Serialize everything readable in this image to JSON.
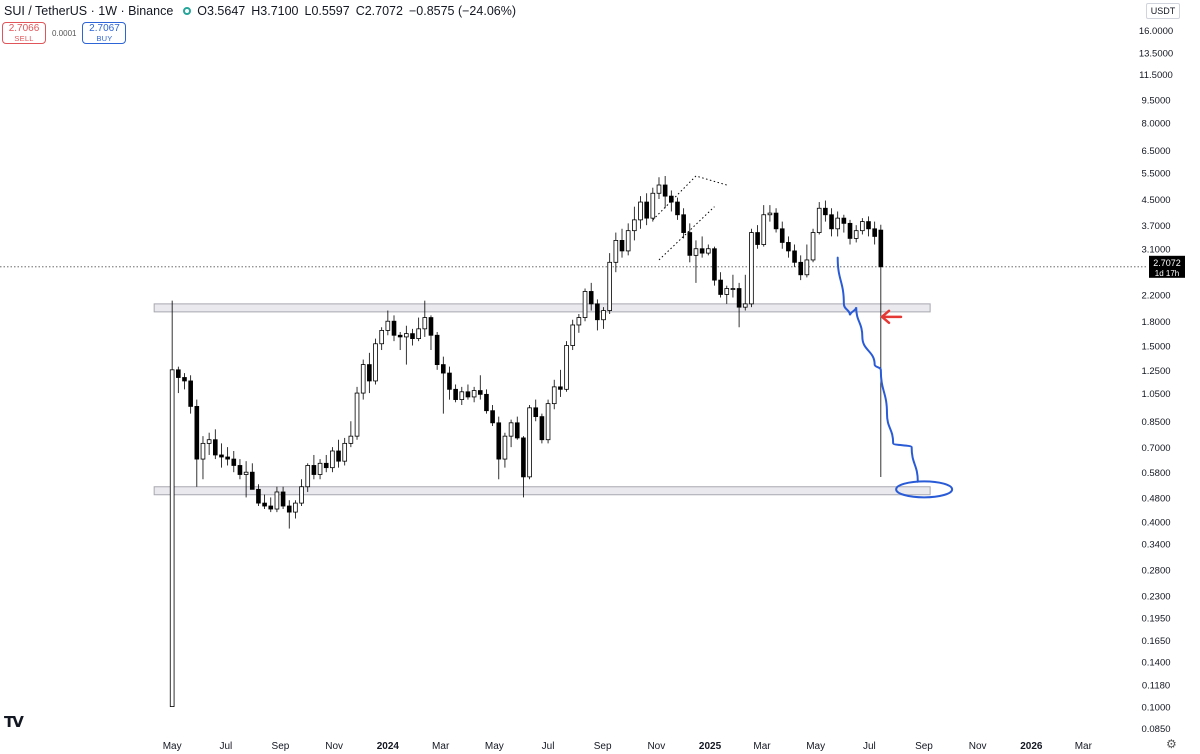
{
  "header": {
    "symbol": "SUI / TetherUS · 1W · Binance",
    "open": "O3.5647",
    "high": "H3.7100",
    "low": "L0.5597",
    "close": "C2.7072",
    "change": "−0.8575 (−24.06%)",
    "sell_price": "2.7066",
    "sell_label": "SELL",
    "spread": "0.0001",
    "buy_price": "2.7067",
    "buy_label": "BUY",
    "currency": "USDT"
  },
  "last_price": {
    "value": "2.7072",
    "countdown": "1d 17h"
  },
  "colors": {
    "up_body": "#ffffff",
    "down_body": "#000000",
    "annotation_blue": "#2a5bd7",
    "annotation_red": "#e53935",
    "zone_fill": "#e9e9ee",
    "zone_stroke": "#a8a8b0"
  },
  "icons": {
    "logo": "tradingview-logo-icon",
    "settings": "gear-icon"
  },
  "logo_text": "TV",
  "chart_data": {
    "type": "candlestick",
    "title": "SUI / TetherUS · 1W · Binance",
    "y_scale": "log",
    "ylim": [
      0.082,
      17.5
    ],
    "xlim": [
      "2023-04-24",
      "2026-04-06"
    ],
    "y_ticks": [
      16.0,
      13.5,
      11.5,
      9.5,
      8.0,
      6.5,
      5.5,
      4.5,
      3.7,
      3.1,
      2.2,
      1.8,
      1.5,
      1.25,
      1.05,
      0.85,
      0.7,
      0.58,
      0.48,
      0.4,
      0.34,
      0.28,
      0.23,
      0.195,
      0.165,
      0.14,
      0.118,
      0.1,
      0.085
    ],
    "y_tick_labels": [
      "16.0000",
      "13.5000",
      "11.5000",
      "9.5000",
      "8.0000",
      "6.5000",
      "5.5000",
      "4.5000",
      "3.7000",
      "3.1000",
      "2.2000",
      "1.8000",
      "1.5000",
      "1.2500",
      "1.0500",
      "0.8500",
      "0.7000",
      "0.5800",
      "0.4800",
      "0.4000",
      "0.3400",
      "0.2800",
      "0.2300",
      "0.1950",
      "0.1650",
      "0.1400",
      "0.1180",
      "0.1000",
      "0.0850"
    ],
    "x_ticks": [
      {
        "date": "2023-05-01",
        "label": "May",
        "bold": false
      },
      {
        "date": "2023-07-01",
        "label": "Jul",
        "bold": false
      },
      {
        "date": "2023-09-01",
        "label": "Sep",
        "bold": false
      },
      {
        "date": "2023-11-01",
        "label": "Nov",
        "bold": false
      },
      {
        "date": "2024-01-01",
        "label": "2024",
        "bold": true
      },
      {
        "date": "2024-03-01",
        "label": "Mar",
        "bold": false
      },
      {
        "date": "2024-05-01",
        "label": "May",
        "bold": false
      },
      {
        "date": "2024-07-01",
        "label": "Jul",
        "bold": false
      },
      {
        "date": "2024-09-01",
        "label": "Sep",
        "bold": false
      },
      {
        "date": "2024-11-01",
        "label": "Nov",
        "bold": false
      },
      {
        "date": "2025-01-01",
        "label": "2025",
        "bold": true
      },
      {
        "date": "2025-03-01",
        "label": "Mar",
        "bold": false
      },
      {
        "date": "2025-05-01",
        "label": "May",
        "bold": false
      },
      {
        "date": "2025-07-01",
        "label": "Jul",
        "bold": false
      },
      {
        "date": "2025-09-01",
        "label": "Sep",
        "bold": false
      },
      {
        "date": "2025-11-01",
        "label": "Nov",
        "bold": false
      },
      {
        "date": "2026-01-01",
        "label": "2026",
        "bold": true
      },
      {
        "date": "2026-03-01",
        "label": "Mar",
        "bold": false
      }
    ],
    "first_week": "2023-05-01",
    "candles": [
      [
        0.1,
        2.1,
        0.1,
        1.25
      ],
      [
        1.25,
        1.28,
        1.05,
        1.18
      ],
      [
        1.18,
        1.22,
        1.08,
        1.15
      ],
      [
        1.15,
        1.2,
        0.9,
        0.95
      ],
      [
        0.95,
        1.0,
        0.52,
        0.64
      ],
      [
        0.64,
        0.76,
        0.55,
        0.72
      ],
      [
        0.72,
        0.78,
        0.66,
        0.74
      ],
      [
        0.74,
        0.8,
        0.64,
        0.66
      ],
      [
        0.66,
        0.72,
        0.6,
        0.65
      ],
      [
        0.65,
        0.7,
        0.61,
        0.64
      ],
      [
        0.64,
        0.68,
        0.58,
        0.61
      ],
      [
        0.61,
        0.64,
        0.55,
        0.57
      ],
      [
        0.57,
        0.63,
        0.48,
        0.58
      ],
      [
        0.58,
        0.62,
        0.51,
        0.51
      ],
      [
        0.51,
        0.53,
        0.45,
        0.46
      ],
      [
        0.46,
        0.49,
        0.44,
        0.45
      ],
      [
        0.45,
        0.48,
        0.43,
        0.44
      ],
      [
        0.44,
        0.52,
        0.43,
        0.5
      ],
      [
        0.5,
        0.52,
        0.44,
        0.45
      ],
      [
        0.45,
        0.47,
        0.38,
        0.43
      ],
      [
        0.43,
        0.47,
        0.41,
        0.46
      ],
      [
        0.46,
        0.55,
        0.45,
        0.52
      ],
      [
        0.52,
        0.62,
        0.5,
        0.61
      ],
      [
        0.61,
        0.66,
        0.55,
        0.57
      ],
      [
        0.57,
        0.64,
        0.55,
        0.62
      ],
      [
        0.62,
        0.66,
        0.58,
        0.6
      ],
      [
        0.6,
        0.7,
        0.58,
        0.68
      ],
      [
        0.68,
        0.74,
        0.6,
        0.63
      ],
      [
        0.63,
        0.75,
        0.61,
        0.72
      ],
      [
        0.72,
        0.85,
        0.7,
        0.76
      ],
      [
        0.76,
        1.1,
        0.74,
        1.05
      ],
      [
        1.05,
        1.35,
        1.0,
        1.3
      ],
      [
        1.3,
        1.42,
        1.05,
        1.15
      ],
      [
        1.15,
        1.58,
        1.12,
        1.52
      ],
      [
        1.52,
        1.72,
        1.45,
        1.68
      ],
      [
        1.68,
        1.95,
        1.62,
        1.8
      ],
      [
        1.8,
        1.88,
        1.55,
        1.62
      ],
      [
        1.62,
        1.66,
        1.45,
        1.6
      ],
      [
        1.6,
        1.74,
        1.3,
        1.64
      ],
      [
        1.64,
        1.7,
        1.5,
        1.58
      ],
      [
        1.58,
        1.85,
        1.55,
        1.7
      ],
      [
        1.7,
        2.1,
        1.6,
        1.85
      ],
      [
        1.85,
        1.88,
        1.45,
        1.62
      ],
      [
        1.62,
        1.66,
        1.25,
        1.3
      ],
      [
        1.3,
        1.38,
        0.9,
        1.22
      ],
      [
        1.22,
        1.28,
        1.0,
        1.08
      ],
      [
        1.08,
        1.12,
        0.98,
        1.0
      ],
      [
        1.0,
        1.1,
        0.96,
        1.06
      ],
      [
        1.06,
        1.12,
        1.0,
        1.02
      ],
      [
        1.02,
        1.1,
        0.98,
        1.07
      ],
      [
        1.07,
        1.2,
        1.0,
        1.04
      ],
      [
        1.04,
        1.08,
        0.9,
        0.92
      ],
      [
        0.92,
        0.96,
        0.82,
        0.84
      ],
      [
        0.84,
        0.88,
        0.55,
        0.64
      ],
      [
        0.64,
        0.78,
        0.6,
        0.76
      ],
      [
        0.76,
        0.86,
        0.7,
        0.84
      ],
      [
        0.84,
        0.88,
        0.74,
        0.75
      ],
      [
        0.75,
        0.76,
        0.48,
        0.56
      ],
      [
        0.56,
        0.96,
        0.55,
        0.94
      ],
      [
        0.94,
        1.0,
        0.85,
        0.88
      ],
      [
        0.88,
        0.9,
        0.72,
        0.74
      ],
      [
        0.74,
        1.0,
        0.72,
        0.97
      ],
      [
        0.97,
        1.16,
        0.93,
        1.1
      ],
      [
        1.1,
        1.25,
        1.02,
        1.08
      ],
      [
        1.08,
        1.55,
        1.06,
        1.5
      ],
      [
        1.5,
        1.82,
        1.45,
        1.75
      ],
      [
        1.75,
        1.9,
        1.65,
        1.85
      ],
      [
        1.85,
        2.3,
        1.8,
        2.25
      ],
      [
        2.25,
        2.4,
        1.95,
        2.05
      ],
      [
        2.05,
        2.12,
        1.68,
        1.82
      ],
      [
        1.82,
        2.0,
        1.7,
        1.95
      ],
      [
        1.95,
        3.0,
        1.9,
        2.8
      ],
      [
        2.8,
        3.5,
        2.6,
        3.3
      ],
      [
        3.3,
        3.6,
        2.9,
        3.05
      ],
      [
        3.05,
        3.75,
        2.95,
        3.55
      ],
      [
        3.55,
        4.25,
        3.3,
        3.85
      ],
      [
        3.85,
        4.6,
        3.6,
        4.4
      ],
      [
        4.4,
        4.7,
        3.7,
        3.9
      ],
      [
        3.9,
        4.9,
        3.8,
        4.7
      ],
      [
        4.7,
        5.3,
        4.5,
        5.0
      ],
      [
        5.0,
        5.35,
        4.2,
        4.6
      ],
      [
        4.6,
        4.8,
        4.1,
        4.4
      ],
      [
        4.4,
        4.55,
        3.85,
        4.0
      ],
      [
        4.0,
        4.2,
        3.35,
        3.5
      ],
      [
        3.5,
        3.75,
        2.8,
        2.95
      ],
      [
        2.95,
        3.3,
        2.4,
        3.1
      ],
      [
        3.1,
        3.4,
        2.9,
        3.0
      ],
      [
        3.0,
        3.2,
        2.95,
        3.1
      ],
      [
        3.1,
        3.15,
        2.35,
        2.45
      ],
      [
        2.45,
        2.6,
        2.15,
        2.2
      ],
      [
        2.2,
        2.35,
        2.05,
        2.3
      ],
      [
        2.3,
        2.55,
        2.15,
        2.3
      ],
      [
        2.3,
        2.4,
        1.72,
        2.0
      ],
      [
        2.0,
        2.55,
        1.95,
        2.05
      ],
      [
        2.05,
        3.6,
        2.0,
        3.5
      ],
      [
        3.5,
        3.7,
        3.1,
        3.2
      ],
      [
        3.2,
        4.3,
        3.15,
        4.0
      ],
      [
        4.0,
        4.3,
        3.8,
        4.05
      ],
      [
        4.05,
        4.2,
        3.5,
        3.6
      ],
      [
        3.6,
        3.8,
        3.1,
        3.25
      ],
      [
        3.25,
        3.4,
        2.9,
        3.05
      ],
      [
        3.05,
        3.2,
        2.7,
        2.8
      ],
      [
        2.8,
        2.95,
        2.45,
        2.55
      ],
      [
        2.55,
        3.2,
        2.5,
        2.85
      ],
      [
        2.85,
        3.6,
        2.8,
        3.5
      ],
      [
        3.5,
        4.4,
        3.45,
        4.2
      ],
      [
        4.2,
        4.45,
        3.8,
        4.0
      ],
      [
        4.0,
        4.2,
        3.4,
        3.6
      ],
      [
        3.6,
        4.1,
        3.4,
        3.9
      ],
      [
        3.9,
        4.0,
        3.5,
        3.75
      ],
      [
        3.75,
        3.85,
        3.2,
        3.35
      ],
      [
        3.35,
        3.7,
        3.25,
        3.55
      ],
      [
        3.55,
        3.9,
        3.45,
        3.8
      ],
      [
        3.8,
        3.95,
        3.4,
        3.6
      ],
      [
        3.6,
        3.8,
        3.2,
        3.4
      ],
      [
        3.5647,
        3.71,
        0.5597,
        2.7072
      ]
    ],
    "zones": [
      {
        "low": 1.95,
        "high": 2.05,
        "from": "2023-05-01",
        "to": "2025-09-08"
      },
      {
        "low": 0.495,
        "high": 0.52,
        "from": "2023-05-01",
        "to": "2025-09-08"
      }
    ],
    "wedge_upper": [
      [
        "2024-10-28",
        3.85
      ],
      [
        "2024-12-16",
        5.35
      ],
      [
        "2025-01-20",
        5.0
      ]
    ],
    "wedge_lower": [
      [
        "2024-11-04",
        2.85
      ],
      [
        "2025-01-06",
        4.25
      ]
    ],
    "projection_path": [
      [
        "2025-05-26",
        2.9
      ],
      [
        "2025-06-02",
        2.05
      ],
      [
        "2025-06-09",
        1.88
      ],
      [
        "2025-06-16",
        2.0
      ],
      [
        "2025-06-23",
        1.6
      ],
      [
        "2025-07-07",
        1.3
      ],
      [
        "2025-07-14",
        1.25
      ],
      [
        "2025-07-21",
        0.9
      ],
      [
        "2025-07-28",
        0.72
      ],
      [
        "2025-08-18",
        0.7
      ],
      [
        "2025-08-25",
        0.54
      ]
    ],
    "projection_target": {
      "date": "2025-09-08",
      "value": 0.51
    },
    "arrow_marker": {
      "date": "2025-07-21",
      "value": 1.86
    }
  }
}
